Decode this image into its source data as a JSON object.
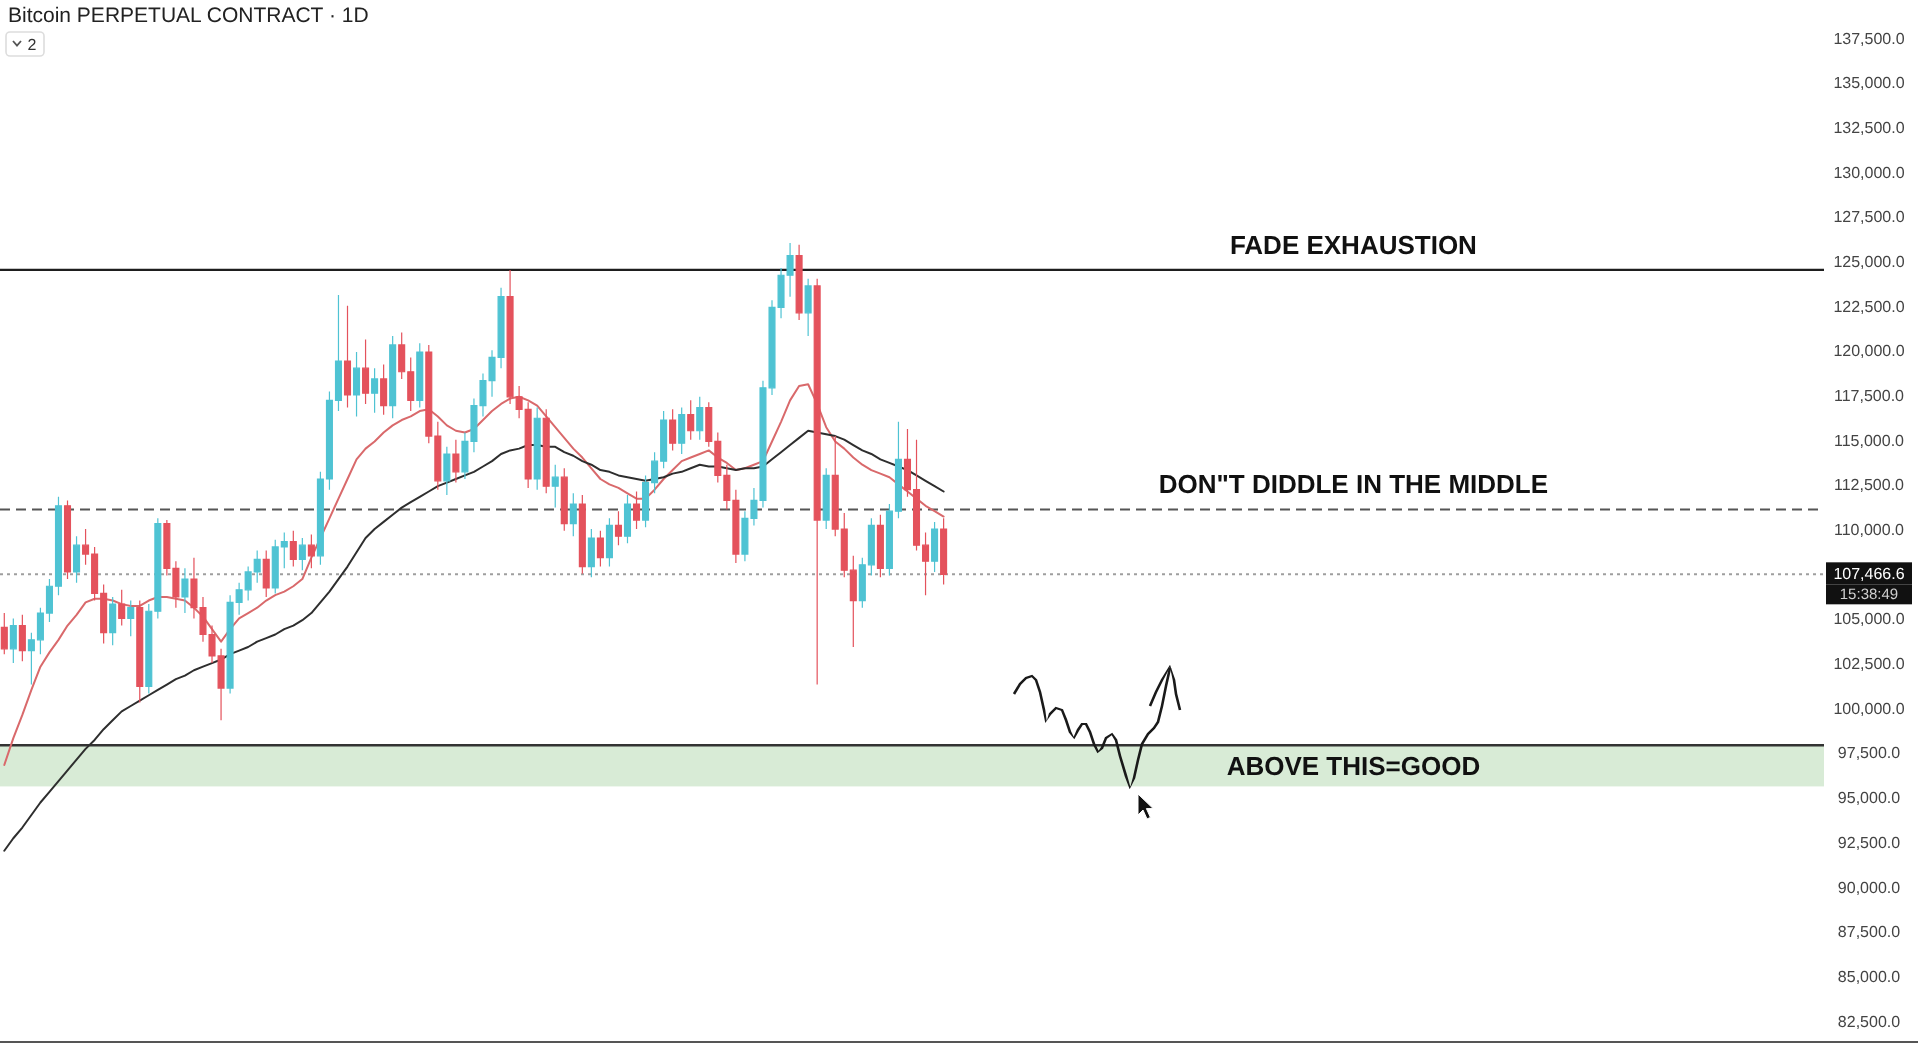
{
  "chart_data": {
    "type": "candlestick",
    "title": "Bitcoin PERPETUAL CONTRACT · 1D",
    "categories": [
      null,
      null,
      null,
      null,
      null,
      null,
      null,
      null,
      null,
      null,
      null,
      null,
      null,
      null,
      null,
      null,
      null,
      null,
      null,
      null,
      null,
      null,
      null,
      null,
      null,
      null,
      null,
      null,
      null,
      null,
      null,
      null,
      null,
      null,
      null,
      null,
      null,
      null,
      null,
      null,
      null,
      null,
      null,
      null,
      null,
      null,
      null,
      null,
      null,
      null,
      null,
      null,
      null,
      null,
      null,
      null,
      null,
      null,
      null,
      null,
      null,
      null,
      null,
      null,
      null,
      null,
      null,
      null,
      null,
      null,
      null,
      null,
      null,
      null,
      null,
      null,
      null,
      null,
      null,
      null,
      null,
      null,
      null,
      null,
      null,
      null,
      null,
      null,
      null,
      null,
      null,
      null,
      null,
      null,
      null,
      null,
      null,
      null,
      null,
      null,
      null,
      null,
      null,
      null,
      null,
      null,
      null,
      null,
      null,
      null,
      null,
      null,
      null,
      null,
      null,
      null,
      null,
      null,
      null,
      null,
      null,
      null,
      null,
      null,
      null,
      null,
      null,
      null,
      null,
      null,
      null,
      null,
      null,
      null,
      null,
      null,
      null,
      null,
      null,
      null,
      null,
      null,
      null,
      null,
      null,
      null,
      null,
      null,
      null,
      null,
      null,
      null,
      null,
      null,
      null,
      null,
      null,
      null,
      null,
      null,
      null,
      null,
      null,
      null,
      null,
      null,
      null,
      null,
      null,
      null,
      null,
      null,
      null,
      null,
      null,
      null,
      null,
      null,
      null,
      null,
      null,
      null,
      null,
      null,
      null,
      null,
      null,
      null,
      null,
      null,
      null,
      null,
      null,
      null,
      null,
      null,
      null,
      null,
      null,
      null,
      null,
      null
    ],
    "ohlc": [
      [
        104500,
        105300,
        103000,
        103300
      ],
      [
        103300,
        105000,
        102500,
        104600
      ],
      [
        104600,
        105200,
        102600,
        103200
      ],
      [
        103200,
        104200,
        101300,
        103800
      ],
      [
        103800,
        105600,
        103000,
        105300
      ],
      [
        105300,
        107200,
        104800,
        106800
      ],
      [
        106800,
        111800,
        106300,
        111300
      ],
      [
        111300,
        111600,
        107200,
        107600
      ],
      [
        107600,
        109600,
        107000,
        109100
      ],
      [
        109100,
        110000,
        108000,
        108600
      ],
      [
        108600,
        109000,
        106000,
        106400
      ],
      [
        106400,
        106900,
        103600,
        104200
      ],
      [
        104200,
        106200,
        103500,
        105800
      ],
      [
        105800,
        106600,
        104600,
        105000
      ],
      [
        105000,
        106000,
        104000,
        105600
      ],
      [
        105600,
        106000,
        100300,
        101200
      ],
      [
        101200,
        105800,
        100800,
        105400
      ],
      [
        105400,
        110600,
        105000,
        110300
      ],
      [
        110300,
        110500,
        107400,
        107800
      ],
      [
        107800,
        108200,
        105600,
        106200
      ],
      [
        106200,
        107800,
        105300,
        107200
      ],
      [
        107200,
        108400,
        105000,
        105600
      ],
      [
        105600,
        106200,
        103700,
        104100
      ],
      [
        104100,
        104600,
        102500,
        102900
      ],
      [
        102900,
        103300,
        99300,
        101100
      ],
      [
        101100,
        106300,
        100800,
        105900
      ],
      [
        105900,
        107000,
        105200,
        106600
      ],
      [
        106600,
        107900,
        106000,
        107600
      ],
      [
        107600,
        108800,
        107000,
        108300
      ],
      [
        108300,
        108800,
        106200,
        106700
      ],
      [
        106700,
        109400,
        106400,
        109000
      ],
      [
        109000,
        109800,
        107800,
        109300
      ],
      [
        109300,
        109900,
        107900,
        108300
      ],
      [
        108300,
        109500,
        107700,
        109100
      ],
      [
        109100,
        109700,
        107800,
        108500
      ],
      [
        108500,
        113200,
        108000,
        112800
      ],
      [
        112800,
        117700,
        112200,
        117200
      ],
      [
        117200,
        123100,
        116600,
        119400
      ],
      [
        119400,
        122500,
        116800,
        117500
      ],
      [
        117500,
        119900,
        116300,
        119000
      ],
      [
        119000,
        120600,
        117000,
        117600
      ],
      [
        117600,
        119000,
        116500,
        118400
      ],
      [
        118400,
        119200,
        116400,
        116900
      ],
      [
        116900,
        120800,
        116200,
        120300
      ],
      [
        120300,
        121000,
        118400,
        118800
      ],
      [
        118800,
        119600,
        116600,
        117200
      ],
      [
        117200,
        120400,
        116800,
        119900
      ],
      [
        119900,
        120300,
        114800,
        115200
      ],
      [
        115200,
        116000,
        112200,
        112700
      ],
      [
        112700,
        114600,
        111900,
        114200
      ],
      [
        114200,
        115000,
        112600,
        113200
      ],
      [
        113200,
        115400,
        112800,
        114900
      ],
      [
        114900,
        117300,
        114300,
        116900
      ],
      [
        116900,
        118700,
        116300,
        118300
      ],
      [
        118300,
        120000,
        117400,
        119600
      ],
      [
        119600,
        123500,
        119000,
        123000
      ],
      [
        123000,
        124500,
        117000,
        117400
      ],
      [
        117400,
        118000,
        116200,
        116700
      ],
      [
        116700,
        117100,
        112300,
        112800
      ],
      [
        112800,
        116800,
        112200,
        116200
      ],
      [
        116200,
        116700,
        112000,
        112400
      ],
      [
        112400,
        113600,
        111200,
        112900
      ],
      [
        112900,
        113400,
        109900,
        110300
      ],
      [
        110300,
        112000,
        109600,
        111400
      ],
      [
        111400,
        111900,
        107500,
        107900
      ],
      [
        107900,
        110000,
        107300,
        109500
      ],
      [
        109500,
        109900,
        107900,
        108400
      ],
      [
        108400,
        110600,
        107900,
        110200
      ],
      [
        110200,
        111000,
        109100,
        109600
      ],
      [
        109600,
        111900,
        109200,
        111400
      ],
      [
        111400,
        112100,
        110000,
        110500
      ],
      [
        110500,
        113000,
        110100,
        112600
      ],
      [
        112600,
        114300,
        112000,
        113800
      ],
      [
        113800,
        116600,
        113400,
        116100
      ],
      [
        116100,
        116700,
        114400,
        114800
      ],
      [
        114800,
        116800,
        114200,
        116400
      ],
      [
        116400,
        117200,
        115000,
        115500
      ],
      [
        115500,
        117400,
        115000,
        116800
      ],
      [
        116800,
        117100,
        114600,
        114900
      ],
      [
        114900,
        115400,
        112600,
        113000
      ],
      [
        113000,
        113600,
        111100,
        111600
      ],
      [
        111600,
        112200,
        108100,
        108600
      ],
      [
        108600,
        111000,
        108200,
        110600
      ],
      [
        110600,
        112300,
        110200,
        111600
      ],
      [
        111600,
        118300,
        111200,
        117900
      ],
      [
        117900,
        122800,
        117500,
        122400
      ],
      [
        122400,
        124600,
        121800,
        124200
      ],
      [
        124200,
        126000,
        123000,
        125300
      ],
      [
        125300,
        125900,
        121700,
        122100
      ],
      [
        122100,
        124000,
        120800,
        123600
      ],
      [
        123600,
        124000,
        101300,
        110500
      ],
      [
        110500,
        113400,
        110000,
        113000
      ],
      [
        113000,
        115200,
        109600,
        110000
      ],
      [
        110000,
        110900,
        107300,
        107700
      ],
      [
        107700,
        108500,
        103400,
        106000
      ],
      [
        106000,
        108400,
        105600,
        108000
      ],
      [
        108000,
        110600,
        107400,
        110200
      ],
      [
        110200,
        110800,
        107300,
        107800
      ],
      [
        107800,
        111400,
        107400,
        111000
      ],
      [
        111000,
        116000,
        110600,
        113900
      ],
      [
        113900,
        115600,
        111800,
        112200
      ],
      [
        112200,
        115000,
        108800,
        109100
      ],
      [
        109100,
        109800,
        106300,
        108200
      ],
      [
        108200,
        110400,
        107600,
        110000
      ],
      [
        110000,
        110600,
        106900,
        107466.6
      ],
      null,
      null,
      null,
      null,
      null,
      null,
      null,
      null,
      null,
      null,
      null,
      null,
      null,
      null,
      null,
      null,
      null,
      null,
      null,
      null,
      null,
      null,
      null,
      null,
      null,
      null,
      null,
      null,
      null,
      null,
      null,
      null,
      null,
      null,
      null,
      null,
      null,
      null,
      null,
      null,
      null,
      null,
      null,
      null,
      null,
      null,
      null,
      null,
      null,
      null,
      null,
      null,
      null,
      null,
      null,
      null,
      null,
      null,
      null,
      null,
      null,
      null,
      null,
      null,
      null,
      null,
      null,
      null,
      null,
      null,
      null,
      null,
      null,
      null,
      null,
      null,
      null,
      null,
      null,
      null,
      null,
      null,
      null,
      null,
      null,
      null,
      null,
      null,
      null,
      null,
      null,
      null,
      null,
      null,
      null,
      null,
      null
    ],
    "colors": [
      "#e4525c",
      "#4fc3d3",
      "#e4525c",
      "#4fc3d3",
      "#4fc3d3",
      "#4fc3d3",
      "#4fc3d3",
      "#e4525c",
      "#4fc3d3",
      "#e4525c",
      "#e4525c",
      "#e4525c",
      "#4fc3d3",
      "#e4525c",
      "#4fc3d3",
      "#e4525c",
      "#4fc3d3",
      "#4fc3d3",
      "#e4525c",
      "#e4525c",
      "#4fc3d3",
      "#e4525c",
      "#e4525c",
      "#e4525c",
      "#e4525c",
      "#4fc3d3",
      "#4fc3d3",
      "#4fc3d3",
      "#4fc3d3",
      "#e4525c",
      "#4fc3d3",
      "#4fc3d3",
      "#e4525c",
      "#4fc3d3",
      "#e4525c",
      "#4fc3d3",
      "#4fc3d3",
      "#4fc3d3",
      "#e4525c",
      "#4fc3d3",
      "#e4525c",
      "#4fc3d3",
      "#e4525c",
      "#4fc3d3",
      "#e4525c",
      "#e4525c",
      "#4fc3d3",
      "#e4525c",
      "#e4525c",
      "#4fc3d3",
      "#e4525c",
      "#4fc3d3",
      "#4fc3d3",
      "#4fc3d3",
      "#4fc3d3",
      "#4fc3d3",
      "#e4525c",
      "#e4525c",
      "#e4525c",
      "#4fc3d3",
      "#e4525c",
      "#4fc3d3",
      "#e4525c",
      "#4fc3d3",
      "#e4525c",
      "#4fc3d3",
      "#e4525c",
      "#4fc3d3",
      "#e4525c",
      "#4fc3d3",
      "#e4525c",
      "#4fc3d3",
      "#4fc3d3",
      "#4fc3d3",
      "#e4525c",
      "#4fc3d3",
      "#e4525c",
      "#4fc3d3",
      "#e4525c",
      "#e4525c",
      "#e4525c",
      "#e4525c",
      "#4fc3d3",
      "#4fc3d3",
      "#4fc3d3",
      "#4fc3d3",
      "#4fc3d3",
      "#4fc3d3",
      "#e4525c",
      "#4fc3d3",
      "#e4525c",
      "#4fc3d3",
      "#e4525c",
      "#e4525c",
      "#e4525c",
      "#4fc3d3",
      "#4fc3d3",
      "#e4525c",
      "#4fc3d3",
      "#4fc3d3",
      "#e4525c",
      "#e4525c",
      "#e4525c",
      "#4fc3d3",
      "#e4525c",
      null,
      null,
      null,
      null,
      null,
      null,
      null,
      null,
      null,
      null,
      null,
      null,
      null,
      null,
      null,
      null,
      null,
      null,
      null,
      null,
      null,
      null,
      null,
      null,
      null,
      null,
      null,
      null,
      null,
      null,
      null,
      null,
      null,
      null,
      null,
      null,
      null,
      null,
      null,
      null,
      null,
      null,
      null,
      null,
      null,
      null,
      null,
      null,
      null,
      null,
      null,
      null,
      null,
      null,
      null,
      null,
      null,
      null,
      null,
      null,
      null,
      null,
      null,
      null,
      null,
      null,
      null,
      null,
      null,
      null,
      null,
      null,
      null,
      null,
      null,
      null,
      null,
      null,
      null,
      null,
      null,
      null,
      null,
      null,
      null,
      null,
      null,
      null,
      null,
      null,
      null,
      null,
      null,
      null,
      null,
      null,
      null
    ],
    "series": [
      {
        "type": "line",
        "color": "#d9696b",
        "values": [
          96800,
          98300,
          99600,
          101000,
          102300,
          103100,
          103800,
          104600,
          105200,
          105900,
          106100,
          106100,
          106000,
          105800,
          105700,
          105700,
          106000,
          106200,
          106200,
          106100,
          106000,
          105600,
          105100,
          104400,
          103700,
          104400,
          105000,
          105300,
          105600,
          106000,
          106300,
          106500,
          106800,
          107200,
          108400,
          109500,
          110600,
          111700,
          112800,
          113900,
          114500,
          114900,
          115400,
          115800,
          116100,
          116300,
          116600,
          116700,
          116300,
          115800,
          115500,
          115400,
          115600,
          116100,
          116600,
          117000,
          117300,
          117400,
          117200,
          116900,
          116300,
          115700,
          115100,
          114500,
          114000,
          113400,
          112800,
          112500,
          112300,
          112000,
          111700,
          111700,
          112200,
          112800,
          113300,
          113800,
          114000,
          114200,
          114400,
          114000,
          113700,
          113300,
          113400,
          113600,
          113800,
          114900,
          116000,
          117200,
          118000,
          118100,
          117000,
          115700,
          114900,
          114500,
          114000,
          113600,
          113300,
          113100,
          112900,
          112500,
          112100,
          111700,
          111300,
          111000,
          110700,
          null,
          null,
          null,
          null,
          null,
          null,
          null,
          null,
          null,
          null,
          null,
          null,
          null,
          null,
          null,
          null,
          null,
          null,
          null,
          null,
          null,
          null,
          null,
          null,
          null,
          null,
          null,
          null,
          null,
          null,
          null,
          null,
          null,
          null,
          null,
          null,
          null,
          null,
          null,
          null,
          null,
          null,
          null,
          null,
          null,
          null,
          null,
          null,
          null,
          null,
          null,
          null,
          null,
          null,
          null,
          null,
          null,
          null,
          null,
          null,
          null,
          null,
          null,
          null,
          null,
          null,
          null,
          null,
          null,
          null,
          null,
          null,
          null,
          null,
          null,
          null,
          null,
          null,
          null,
          null,
          null,
          null,
          null,
          null,
          null,
          null,
          null,
          null,
          null,
          null,
          null,
          null,
          null,
          null,
          null,
          null,
          null
        ]
      },
      {
        "type": "line",
        "color": "#2e2e2e",
        "values": [
          92000,
          92700,
          93300,
          94000,
          94700,
          95300,
          95900,
          96500,
          97100,
          97700,
          98200,
          98800,
          99300,
          99800,
          100100,
          100400,
          100700,
          101000,
          101300,
          101600,
          101800,
          102100,
          102300,
          102500,
          102700,
          103000,
          103200,
          103400,
          103700,
          103900,
          104100,
          104400,
          104600,
          104900,
          105300,
          105900,
          106500,
          107200,
          107900,
          108700,
          109500,
          110000,
          110400,
          110800,
          111200,
          111500,
          111800,
          112100,
          112400,
          112600,
          112800,
          113000,
          113200,
          113500,
          113800,
          114200,
          114400,
          114500,
          114700,
          114700,
          114600,
          114600,
          114300,
          114100,
          113800,
          113600,
          113300,
          113200,
          113000,
          112900,
          112800,
          112700,
          112800,
          112900,
          113100,
          113200,
          113400,
          113600,
          113500,
          113500,
          113400,
          113300,
          113400,
          113400,
          113500,
          113900,
          114300,
          114700,
          115100,
          115500,
          115400,
          115300,
          115200,
          115000,
          114700,
          114400,
          114200,
          113900,
          113700,
          113500,
          113300,
          113000,
          112700,
          112400,
          112100,
          null,
          null,
          null,
          null,
          null,
          null,
          null,
          null,
          null,
          null,
          null,
          null,
          null,
          null,
          null,
          null,
          null,
          null,
          null,
          null,
          null,
          null,
          null,
          null,
          null,
          null,
          null,
          null,
          null,
          null,
          null,
          null,
          null,
          null,
          null,
          null,
          null,
          null,
          null,
          null,
          null,
          null,
          null,
          null,
          null,
          null,
          null,
          null,
          null,
          null,
          null,
          null,
          null,
          null,
          null,
          null,
          null,
          null,
          null,
          null,
          null,
          null,
          null,
          null,
          null,
          null,
          null,
          null,
          null,
          null,
          null,
          null,
          null,
          null,
          null,
          null,
          null,
          null,
          null,
          null,
          null,
          null,
          null,
          null,
          null,
          null,
          null,
          null,
          null,
          null,
          null,
          null,
          null,
          null,
          null,
          null,
          null
        ]
      }
    ],
    "ylim": [
      81300,
      139600
    ],
    "yticks": [
      {
        "value": 82500,
        "label": "82,500.0"
      },
      {
        "value": 85000,
        "label": "85,000.0"
      },
      {
        "value": 87500,
        "label": "87,500.0"
      },
      {
        "value": 90000,
        "label": "90,000.0"
      },
      {
        "value": 92500,
        "label": "92,500.0"
      },
      {
        "value": 95000,
        "label": "95,000.0"
      },
      {
        "value": 97500,
        "label": "97,500.0"
      },
      {
        "value": 100000,
        "label": "100,000.0"
      },
      {
        "value": 102500,
        "label": "102,500.0"
      },
      {
        "value": 105000,
        "label": "105,000.0"
      },
      {
        "value": 110000,
        "label": "110,000.0"
      },
      {
        "value": 112500,
        "label": "112,500.0"
      },
      {
        "value": 115000,
        "label": "115,000.0"
      },
      {
        "value": 117500,
        "label": "117,500.0"
      },
      {
        "value": 120000,
        "label": "120,000.0"
      },
      {
        "value": 122500,
        "label": "122,500.0"
      },
      {
        "value": 125000,
        "label": "125,000.0"
      },
      {
        "value": 127500,
        "label": "127,500.0"
      },
      {
        "value": 130000,
        "label": "130,000.0"
      },
      {
        "value": 132500,
        "label": "132,500.0"
      },
      {
        "value": 135000,
        "label": "135,000.0"
      },
      {
        "value": 137500,
        "label": "137,500.0"
      }
    ],
    "ref_lines": [
      {
        "axis": "y",
        "value": 124500,
        "label": "FADE EXHAUSTION",
        "color": "#1e1e1e",
        "line_style": "solid"
      },
      {
        "axis": "y",
        "value": 111100,
        "label": "DON\"T DIDDLE IN THE MIDDLE",
        "color": "#555555",
        "line_style": "dashed"
      },
      {
        "axis": "y",
        "value": 97900,
        "color": "#333333",
        "line_style": "solid"
      },
      {
        "axis": "y",
        "value": 107466.6,
        "label": "107,466.6",
        "color": "#9e9e9e",
        "line_style": "dotted"
      }
    ],
    "bands": [
      {
        "axis": "y",
        "from": 95600,
        "to": 97900,
        "label": "ABOVE THIS=GOOD",
        "color": "#d8ebd6"
      }
    ],
    "annotations": [
      "2",
      "15:38:49"
    ]
  }
}
